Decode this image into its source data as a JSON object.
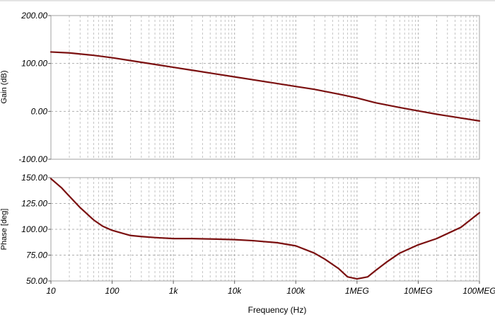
{
  "chart_data": [
    {
      "type": "line",
      "ylabel": "Gain (dB)",
      "xscale": "log",
      "xlim": [
        10,
        100000000
      ],
      "ylim": [
        -100,
        200
      ],
      "yticks": [
        "200.00",
        "100.00",
        "0.00",
        "-100.00"
      ],
      "grid": true,
      "series": [
        {
          "color": "#7b1010",
          "x": [
            10,
            20,
            50,
            100,
            200,
            500,
            1000,
            2000,
            5000,
            10000,
            20000,
            50000,
            100000,
            200000,
            500000,
            1000000,
            2000000,
            5000000,
            10000000,
            20000000,
            50000000,
            100000000
          ],
          "y": [
            124,
            122,
            117,
            112,
            106,
            98,
            92,
            86,
            78,
            72,
            66,
            58,
            52,
            46,
            36,
            28,
            18,
            8,
            1,
            -6,
            -14,
            -20
          ]
        }
      ]
    },
    {
      "type": "line",
      "ylabel": "Phase [deg]",
      "xlabel": "Frequency (Hz)",
      "xscale": "log",
      "xlim": [
        10,
        100000000
      ],
      "ylim": [
        50,
        150
      ],
      "yticks": [
        "150.00",
        "125.00",
        "100.00",
        "75.00",
        "50.00"
      ],
      "xticks": [
        "10",
        "100",
        "1k",
        "10k",
        "100k",
        "1MEG",
        "10MEG",
        "100MEG"
      ],
      "grid": true,
      "series": [
        {
          "color": "#7b1010",
          "x": [
            10,
            15,
            20,
            30,
            50,
            70,
            100,
            150,
            200,
            300,
            500,
            1000,
            2000,
            5000,
            10000,
            20000,
            50000,
            100000,
            200000,
            300000,
            500000,
            700000,
            1000000,
            1500000,
            2000000,
            3000000,
            5000000,
            10000000,
            20000000,
            50000000,
            100000000
          ],
          "y": [
            149,
            140,
            132,
            121,
            109,
            103,
            99,
            96,
            94,
            93,
            92,
            91,
            91,
            90.5,
            90,
            89,
            87,
            84,
            77,
            71,
            62,
            54,
            52,
            54,
            60,
            68,
            77,
            85,
            91,
            102,
            116
          ]
        }
      ]
    }
  ]
}
